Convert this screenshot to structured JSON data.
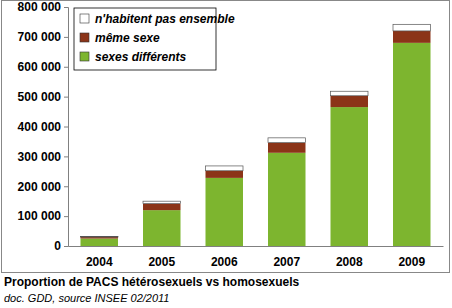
{
  "chart_data": {
    "type": "bar",
    "stacked": true,
    "title": "Proportion de PACS hétérosexuels vs homosexuels",
    "subtitle": "doc. GDD, source INSEE 02/2011",
    "categories": [
      "2004",
      "2005",
      "2006",
      "2007",
      "2008",
      "2009"
    ],
    "series": [
      {
        "name": "sexes différents",
        "color": "#7db52f",
        "values": [
          25000,
          120000,
          228000,
          312000,
          465000,
          680000
        ]
      },
      {
        "name": "même sexe",
        "color": "#8b3418",
        "values": [
          5000,
          22000,
          24000,
          34000,
          38000,
          40000
        ]
      },
      {
        "name": "n'habitent pas ensemble",
        "color": "#ffffff",
        "values": [
          2000,
          8000,
          16000,
          16000,
          15000,
          22000
        ]
      }
    ],
    "ylim": [
      0,
      800000
    ],
    "yticks": [
      0,
      {
        "value": 100000,
        "label": "100 000"
      },
      {
        "value": 200000,
        "label": "200 000"
      },
      {
        "value": 300000,
        "label": "300 000"
      },
      {
        "value": 400000,
        "label": "400 000"
      },
      {
        "value": 500000,
        "label": "500 000"
      },
      {
        "value": 600000,
        "label": "600 000"
      },
      {
        "value": 700000,
        "label": "700 000"
      },
      {
        "value": 800000,
        "label": "800 000"
      }
    ],
    "grid": false,
    "legend": "upper left"
  }
}
